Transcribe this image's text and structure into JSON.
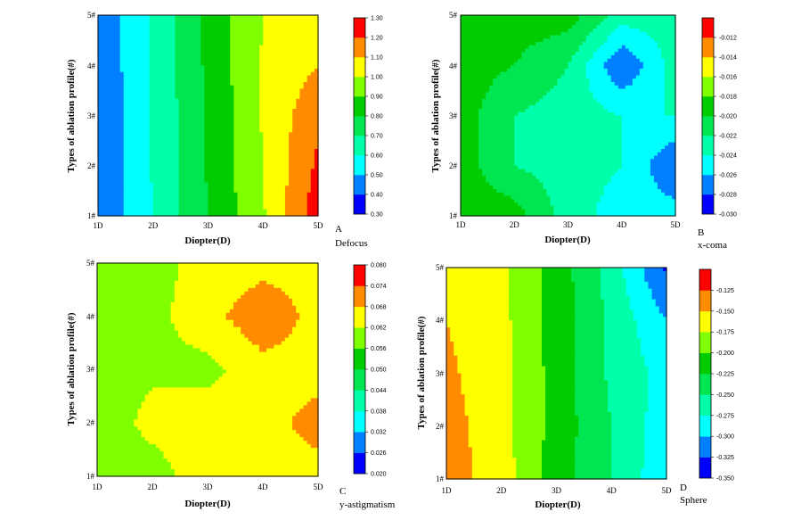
{
  "chart_data": [
    {
      "type": "heatmap",
      "panel_id": "A",
      "caption": "Defocus",
      "xlabel": "Diopter(D)",
      "ylabel": "Types of ablation profile(#)",
      "x_ticks": [
        "1D",
        "2D",
        "3D",
        "4D",
        "5D"
      ],
      "y_ticks": [
        "1#",
        "2#",
        "3#",
        "4#",
        "5#"
      ],
      "x": [
        1,
        2,
        3,
        4,
        5
      ],
      "y": [
        1,
        2,
        3,
        4,
        5
      ],
      "z": [
        [
          0.4,
          0.6,
          0.8,
          0.99,
          1.26
        ],
        [
          0.4,
          0.61,
          0.81,
          1.0,
          1.22
        ],
        [
          0.4,
          0.61,
          0.81,
          1.01,
          1.18
        ],
        [
          0.41,
          0.62,
          0.82,
          1.01,
          1.1
        ],
        [
          0.41,
          0.62,
          0.83,
          1.0,
          1.05
        ]
      ],
      "colorbar": {
        "range": [
          0.3,
          1.3
        ],
        "tick_labels": [
          "1.30",
          "1.20",
          "1.10",
          "1.00",
          "0.90",
          "0.80",
          "0.70",
          "0.60",
          "0.50",
          "0.40",
          "0.30"
        ]
      }
    },
    {
      "type": "heatmap",
      "panel_id": "B",
      "caption": "x-coma",
      "xlabel": "Diopter(D)",
      "ylabel": "Types of ablation profile(#)",
      "x_ticks": [
        "1D",
        "2D",
        "3D",
        "4D",
        "5D"
      ],
      "y_ticks": [
        "1#",
        "2#",
        "3#",
        "4#",
        "5#"
      ],
      "x": [
        1,
        2,
        3,
        4,
        5
      ],
      "y": [
        1,
        2,
        3,
        4,
        5
      ],
      "z": [
        [
          -0.019,
          -0.019,
          -0.023,
          -0.025,
          -0.025
        ],
        [
          -0.019,
          -0.022,
          -0.023,
          -0.024,
          -0.028
        ],
        [
          -0.019,
          -0.022,
          -0.023,
          -0.024,
          -0.024
        ],
        [
          -0.019,
          -0.02,
          -0.022,
          -0.028,
          -0.023
        ],
        [
          -0.019,
          -0.019,
          -0.019,
          -0.023,
          -0.023
        ]
      ],
      "colorbar": {
        "range": [
          -0.03,
          -0.01
        ],
        "tick_labels": [
          "-0.012",
          "-0.014",
          "-0.016",
          "-0.018",
          "-0.020",
          "-0.022",
          "-0.024",
          "-0.026",
          "-0.028",
          "-0.030"
        ]
      }
    },
    {
      "type": "heatmap",
      "panel_id": "C",
      "caption": "y-astigmatism",
      "xlabel": "Diopter(D)",
      "ylabel": "Types of ablation profile(#)",
      "x_ticks": [
        "1D",
        "2D",
        "3D",
        "4D",
        "5D"
      ],
      "y_ticks": [
        "1#",
        "2#",
        "3#",
        "4#",
        "5#"
      ],
      "x": [
        1,
        2,
        3,
        4,
        5
      ],
      "y": [
        1,
        2,
        3,
        4,
        5
      ],
      "z": [
        [
          0.058,
          0.059,
          0.066,
          0.066,
          0.066
        ],
        [
          0.058,
          0.064,
          0.066,
          0.066,
          0.07
        ],
        [
          0.058,
          0.061,
          0.06,
          0.066,
          0.066
        ],
        [
          0.058,
          0.06,
          0.066,
          0.072,
          0.066
        ],
        [
          0.058,
          0.06,
          0.064,
          0.066,
          0.066
        ]
      ],
      "colorbar": {
        "range": [
          0.02,
          0.08
        ],
        "tick_labels": [
          "0.080",
          "0.074",
          "0.068",
          "0.062",
          "0.056",
          "0.050",
          "0.044",
          "0.038",
          "0.032",
          "0.026",
          "0.020"
        ]
      }
    },
    {
      "type": "heatmap",
      "panel_id": "D",
      "caption": "Sphere",
      "xlabel": "Diopter(D)",
      "ylabel": "Types of ablation profile(#)",
      "x_ticks": [
        "1D",
        "2D",
        "3D",
        "4D",
        "5D"
      ],
      "y_ticks": [
        "1#",
        "2#",
        "3#",
        "4#",
        "5#"
      ],
      "x": [
        1,
        2,
        3,
        4,
        5
      ],
      "y": [
        1,
        2,
        3,
        4,
        5
      ],
      "z": [
        [
          -0.138,
          -0.163,
          -0.213,
          -0.25,
          -0.295
        ],
        [
          -0.14,
          -0.165,
          -0.21,
          -0.25,
          -0.29
        ],
        [
          -0.145,
          -0.167,
          -0.21,
          -0.255,
          -0.285
        ],
        [
          -0.15,
          -0.168,
          -0.21,
          -0.255,
          -0.3
        ],
        [
          -0.155,
          -0.17,
          -0.21,
          -0.262,
          -0.33
        ]
      ],
      "colorbar": {
        "range": [
          -0.35,
          -0.1
        ],
        "tick_labels": [
          "-0.125",
          "-0.150",
          "-0.175",
          "-0.200",
          "-0.225",
          "-0.250",
          "-0.275",
          "-0.300",
          "-0.325",
          "-0.350"
        ]
      }
    }
  ],
  "palette": {
    "levels": [
      "#0000ff",
      "#0080ff",
      "#00ffff",
      "#00ffaa",
      "#00e650",
      "#00cc00",
      "#80ff00",
      "#ffff00",
      "#ff8c00",
      "#ff0000"
    ],
    "outline": "#000000",
    "contour_line": "#555555"
  }
}
